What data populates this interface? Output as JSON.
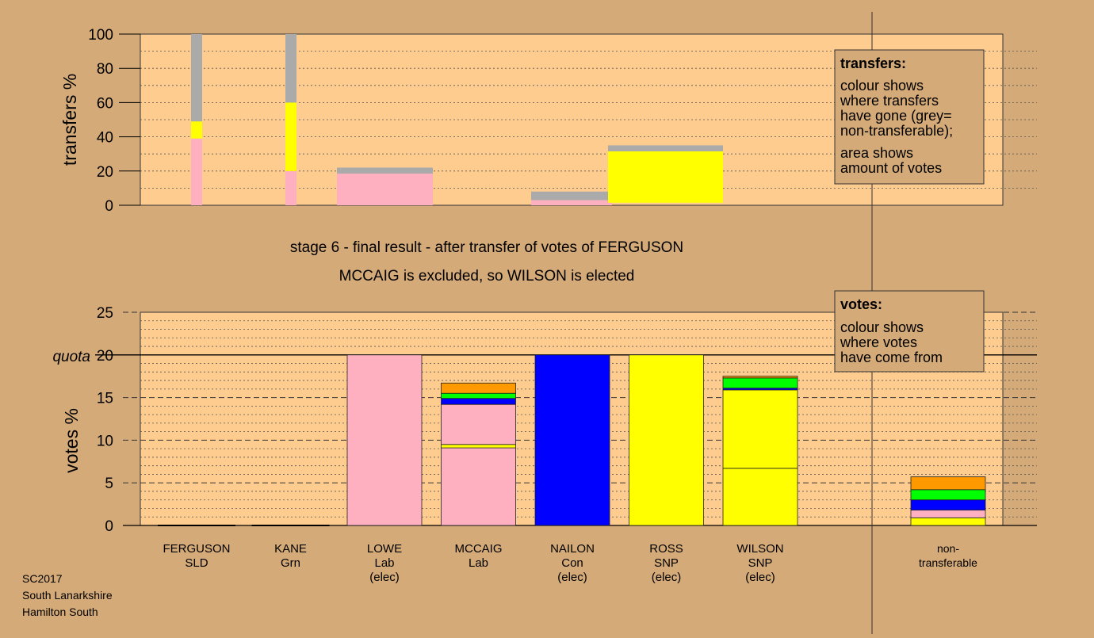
{
  "meta": {
    "code": "SC2017",
    "council": "South Lanarkshire",
    "ward": "Hamilton South"
  },
  "colors": {
    "background": "#D4AA78",
    "plot_bg": "#FFCC90",
    "Lab": "#FFB0C0",
    "SNP": "#FFFF00",
    "Con": "#0000FF",
    "Grn": "#00FF00",
    "SLD": "#FF9900",
    "nt": "#AAAAAA"
  },
  "captions": {
    "line1": "stage 6 - final result - after transfer of votes of FERGUSON",
    "line2": "MCCAIG is excluded, so WILSON is elected"
  },
  "legend_transfers": {
    "title": "transfers:",
    "lines": [
      "colour shows",
      "where transfers",
      "have gone (grey=",
      "non-transferable);"
    ],
    "lines2": [
      "area shows",
      "amount of votes"
    ]
  },
  "legend_votes": {
    "title": "votes:",
    "lines": [
      "colour shows",
      "where votes",
      "have come from"
    ]
  },
  "chart_data": [
    {
      "type": "bar",
      "id": "transfers",
      "ylabel": "transfers %",
      "ylim": [
        0,
        100
      ],
      "yticks": [
        0,
        20,
        40,
        60,
        80,
        100
      ],
      "transfers": [
        {
          "candidate": "FERGUSON",
          "segments": [
            {
              "party": "Lab",
              "from": 0,
              "to": 39
            },
            {
              "party": "SNP",
              "from": 39,
              "to": 49
            },
            {
              "party": "nt",
              "from": 49,
              "to": 100
            }
          ]
        },
        {
          "candidate": "KANE",
          "segments": [
            {
              "party": "Lab",
              "from": 0,
              "to": 20
            },
            {
              "party": "SNP",
              "from": 20,
              "to": 60
            },
            {
              "party": "nt",
              "from": 60,
              "to": 100
            }
          ]
        },
        {
          "candidate": "LOWE",
          "segments": [
            {
              "party": "Lab",
              "from": 0,
              "to": 18.5
            },
            {
              "party": "nt",
              "from": 18.5,
              "to": 22
            }
          ]
        },
        {
          "candidate": "NAILON",
          "segments": [
            {
              "party": "Lab",
              "from": 0,
              "to": 3
            },
            {
              "party": "nt",
              "from": 3,
              "to": 8
            }
          ]
        },
        {
          "candidate": "ROSS",
          "segments": [
            {
              "party": "SNP",
              "from": 1.5,
              "to": 31.5
            },
            {
              "party": "nt",
              "from": 31.5,
              "to": 35
            }
          ]
        }
      ]
    },
    {
      "type": "bar",
      "id": "votes",
      "ylabel": "votes %",
      "quota_label": "quota",
      "quota": 20,
      "ylim": [
        0,
        25
      ],
      "yticks": [
        0,
        5,
        10,
        15,
        20,
        25
      ],
      "categories": [
        {
          "name": "FERGUSON",
          "party": "SLD",
          "status": ""
        },
        {
          "name": "KANE",
          "party": "Grn",
          "status": ""
        },
        {
          "name": "LOWE",
          "party": "Lab",
          "status": "(elec)"
        },
        {
          "name": "MCCAIG",
          "party": "Lab",
          "status": ""
        },
        {
          "name": "NAILON",
          "party": "Con",
          "status": "(elec)"
        },
        {
          "name": "ROSS",
          "party": "SNP",
          "status": "(elec)"
        },
        {
          "name": "WILSON",
          "party": "SNP",
          "status": "(elec)"
        },
        {
          "name": "",
          "party": "",
          "status": ""
        },
        {
          "name": "non-",
          "party": "transferable",
          "status": ""
        }
      ],
      "stacks": [
        [],
        [],
        [
          {
            "party": "Lab",
            "value": 20
          }
        ],
        [
          {
            "party": "Lab",
            "value": 9.1
          },
          {
            "party": "SNP",
            "value": 0.4
          },
          {
            "party": "Lab",
            "value": 4.7
          },
          {
            "party": "Con",
            "value": 0.7
          },
          {
            "party": "Grn",
            "value": 0.6
          },
          {
            "party": "SLD",
            "value": 1.2
          }
        ],
        [
          {
            "party": "Con",
            "value": 20
          }
        ],
        [
          {
            "party": "SNP",
            "value": 20
          }
        ],
        [
          {
            "party": "SNP",
            "value": 6.7
          },
          {
            "party": "SNP",
            "value": 9.2
          },
          {
            "party": "Con",
            "value": 0.2
          },
          {
            "party": "Grn",
            "value": 1.2
          },
          {
            "party": "SLD",
            "value": 0.2
          }
        ],
        [],
        [
          {
            "party": "SNP",
            "value": 0.9
          },
          {
            "party": "Lab",
            "value": 0.9
          },
          {
            "party": "Con",
            "value": 1.2
          },
          {
            "party": "Grn",
            "value": 1.2
          },
          {
            "party": "SLD",
            "value": 1.5
          }
        ]
      ]
    }
  ]
}
